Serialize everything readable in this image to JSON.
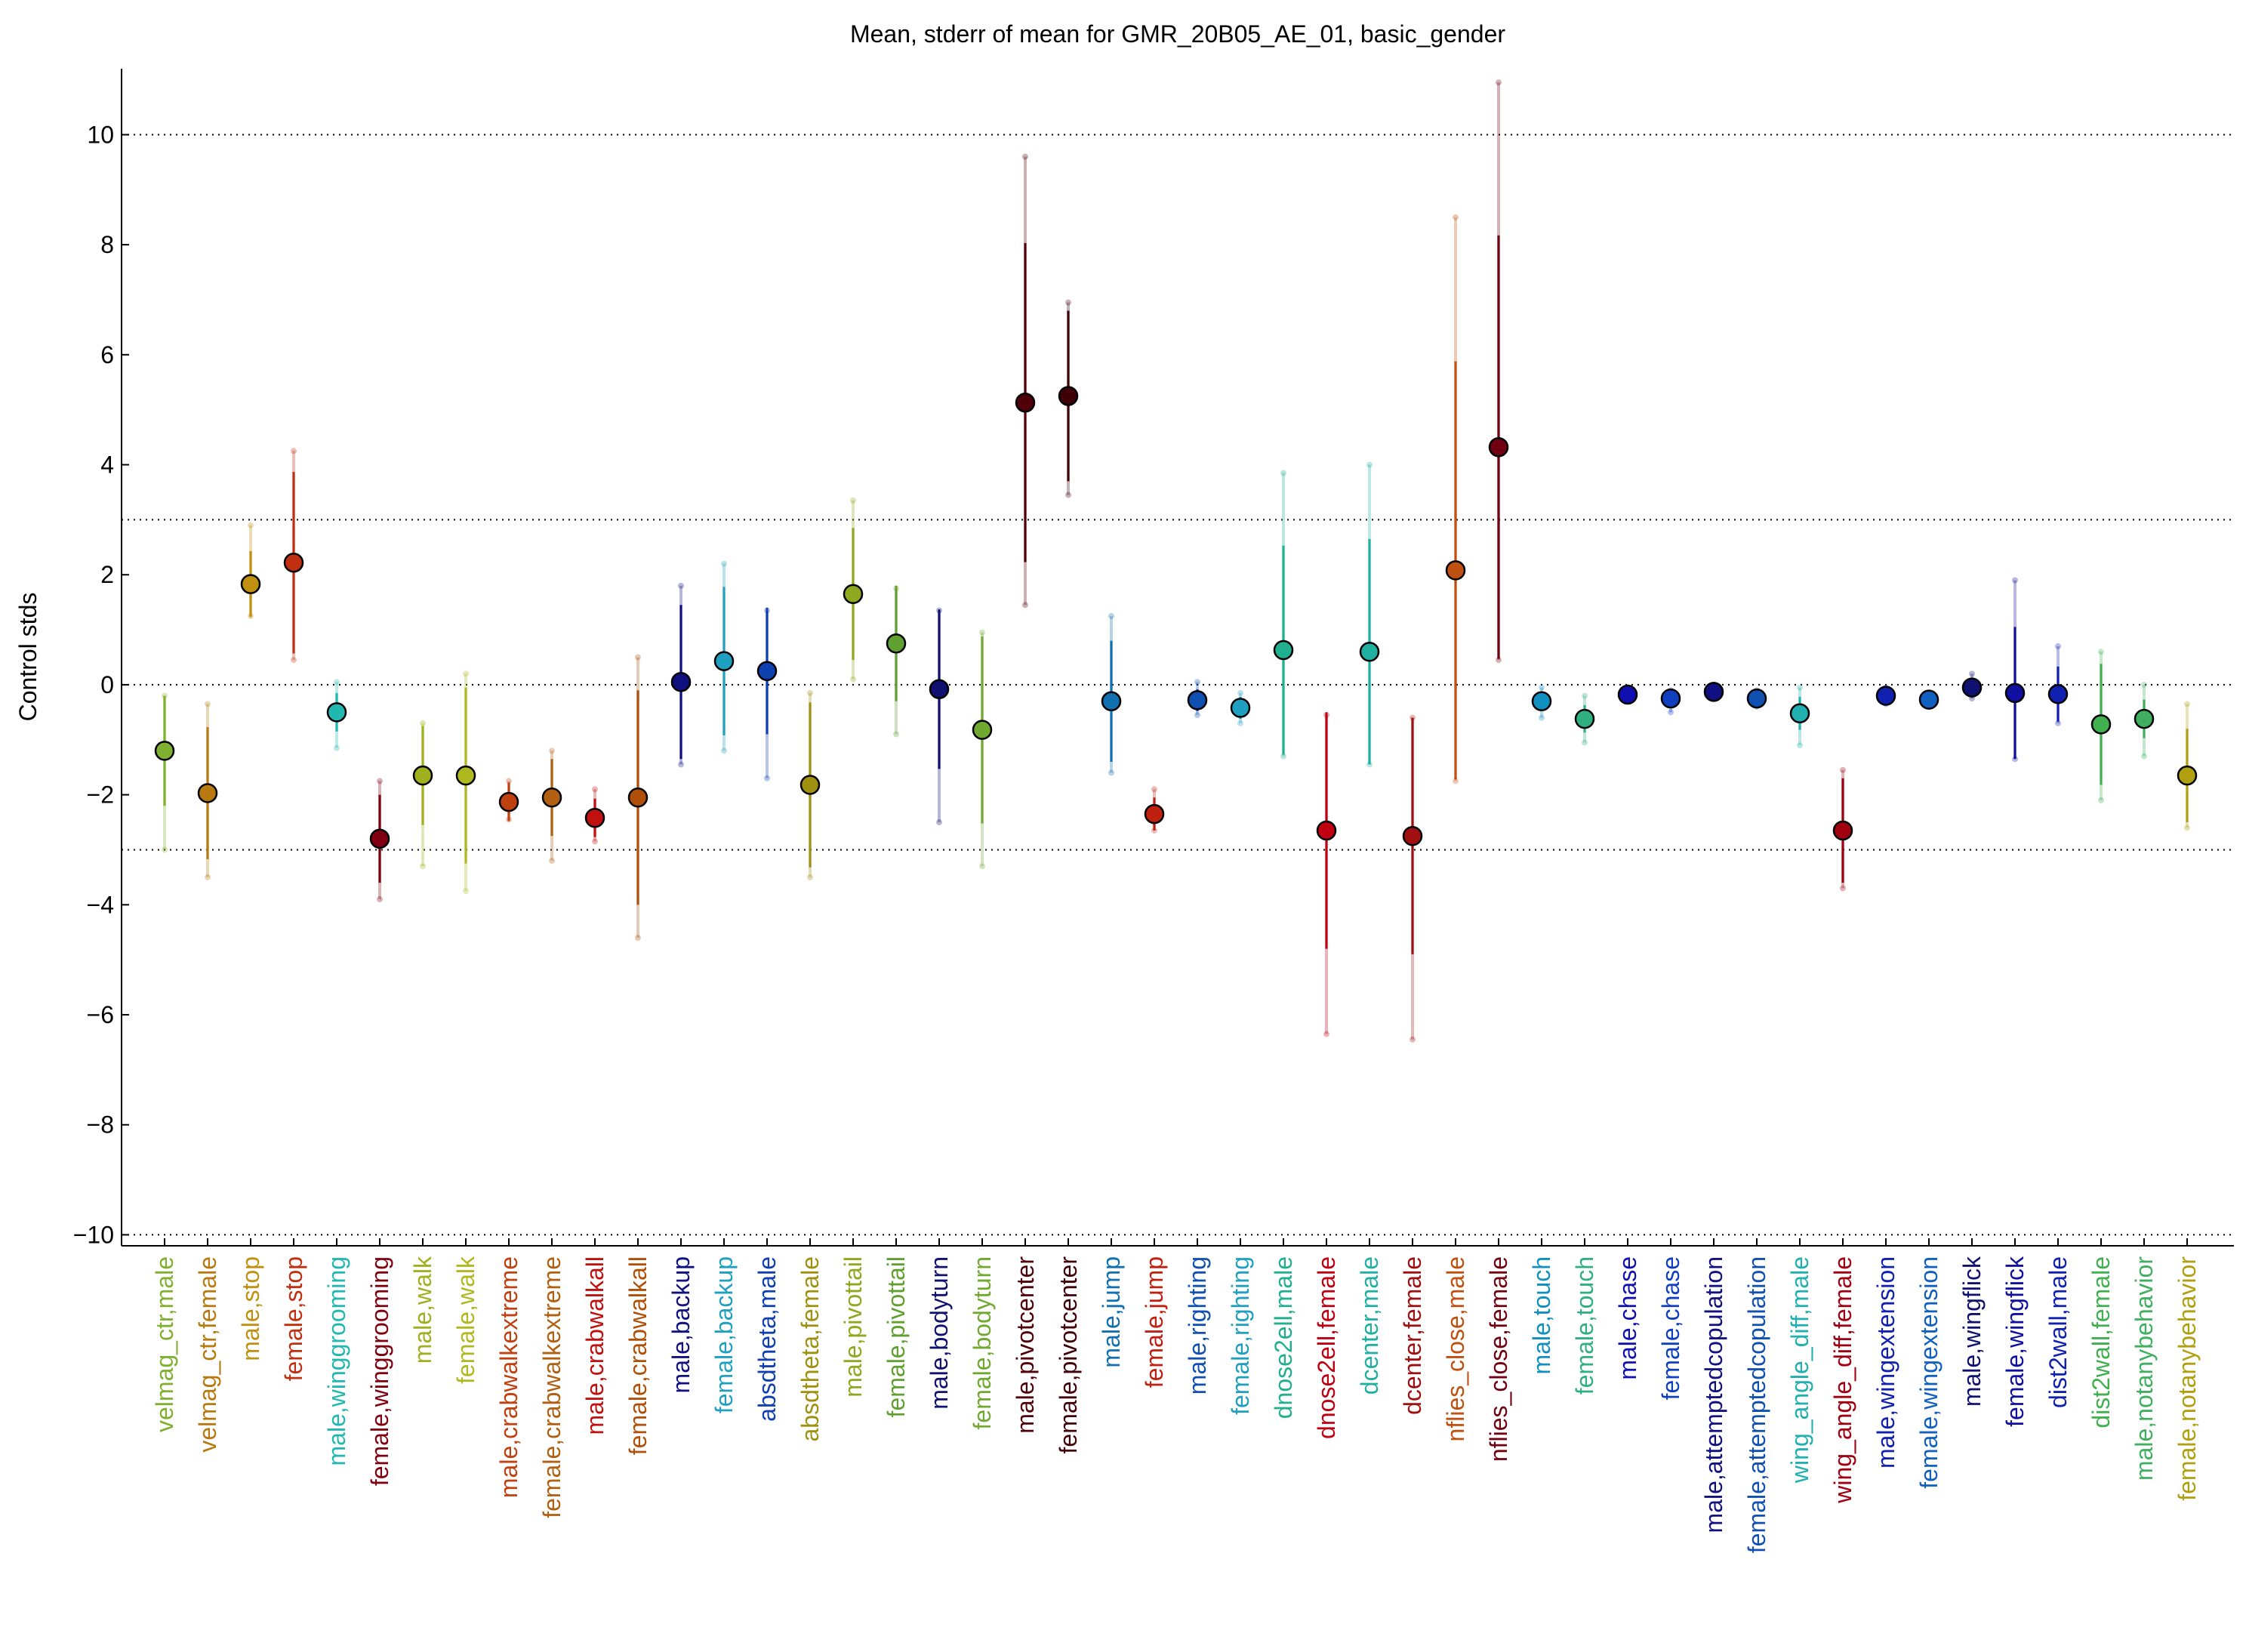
{
  "chart_data": {
    "type": "errorbar",
    "title": "Mean, stderr of mean for GMR_20B05_AE_01, basic_gender",
    "y_label": "Control stds",
    "ylim": [
      -10.2,
      11.2
    ],
    "yticks": [
      {
        "value": -10,
        "label": "−10"
      },
      {
        "value": -8,
        "label": "−8"
      },
      {
        "value": -6,
        "label": "−6"
      },
      {
        "value": -4,
        "label": "−4"
      },
      {
        "value": -2,
        "label": "−2"
      },
      0,
      2,
      4,
      6,
      8,
      10
    ],
    "hlines": [
      -10,
      -3,
      0,
      3,
      10
    ],
    "categories": [
      "velmag_ctr,male",
      "velmag_ctr,female",
      "male,stop",
      "female,stop",
      "male,winggrooming",
      "female,winggrooming",
      "male,walk",
      "female,walk",
      "male,crabwalkextreme",
      "female,crabwalkextreme",
      "male,crabwalkall",
      "female,crabwalkall",
      "male,backup",
      "female,backup",
      "absdtheta,male",
      "absdtheta,female",
      "male,pivottail",
      "female,pivottail",
      "male,bodyturn",
      "female,bodyturn",
      "male,pivotcenter",
      "female,pivotcenter",
      "male,jump",
      "female,jump",
      "male,righting",
      "female,righting",
      "dnose2ell,male",
      "dnose2ell,female",
      "dcenter,male",
      "dcenter,female",
      "nflies_close,male",
      "nflies_close,female",
      "male,touch",
      "female,touch",
      "male,chase",
      "female,chase",
      "male,attemptedcopulation",
      "female,attemptedcopulation",
      "wing_angle_diff,male",
      "wing_angle_diff,female",
      "male,wingextension",
      "female,wingextension",
      "male,wingflick",
      "female,wingflick",
      "dist2wall,male",
      "dist2wall,female",
      "male,notanybehavior",
      "female,notanybehavior"
    ],
    "values": [
      -1.2,
      -1.97,
      1.83,
      2.22,
      -0.5,
      -2.8,
      -1.65,
      -1.65,
      -2.13,
      -2.05,
      -2.42,
      -2.05,
      0.05,
      0.43,
      0.25,
      -1.82,
      1.65,
      0.75,
      -0.08,
      -0.82,
      5.13,
      5.25,
      -0.3,
      -2.35,
      -0.28,
      -0.42,
      0.63,
      -2.65,
      0.6,
      -2.75,
      2.08,
      4.32,
      -0.3,
      -0.62,
      -0.18,
      -0.25,
      -0.13,
      -0.25,
      -0.52,
      -2.65,
      -0.2,
      -0.27,
      -0.05,
      -0.15,
      -0.17,
      -0.72,
      -0.62,
      -1.65
    ],
    "errors": [
      1.0,
      1.2,
      0.6,
      1.65,
      0.35,
      0.8,
      0.9,
      1.6,
      0.35,
      0.7,
      0.35,
      1.95,
      1.4,
      1.35,
      1.15,
      1.5,
      1.2,
      1.05,
      1.45,
      1.7,
      2.9,
      1.55,
      1.1,
      0.3,
      0.2,
      0.2,
      1.9,
      2.15,
      2.05,
      2.15,
      3.8,
      3.85,
      0.15,
      0.25,
      0.1,
      0.12,
      0.08,
      0.1,
      0.3,
      0.95,
      0.08,
      0.1,
      0.15,
      1.2,
      0.5,
      1.1,
      0.35,
      0.85
    ],
    "low": [
      -3.0,
      -3.5,
      1.25,
      0.45,
      -1.15,
      -3.9,
      -3.3,
      -3.75,
      -2.45,
      -3.2,
      -2.85,
      -4.6,
      -1.45,
      -1.2,
      -1.7,
      -3.5,
      0.1,
      -0.9,
      -2.5,
      -3.3,
      1.45,
      3.45,
      -1.6,
      -2.65,
      -0.55,
      -0.7,
      -1.3,
      -6.35,
      -1.45,
      -6.45,
      -1.75,
      0.45,
      -0.6,
      -1.05,
      -0.3,
      -0.5,
      -0.25,
      -0.4,
      -1.1,
      -3.7,
      -0.35,
      -0.4,
      -0.25,
      -1.35,
      -0.7,
      -2.1,
      -1.3,
      -2.6
    ],
    "high": [
      -0.2,
      -0.35,
      2.9,
      4.25,
      0.05,
      -1.75,
      -0.7,
      0.2,
      -1.75,
      -1.2,
      -1.9,
      0.5,
      1.8,
      2.2,
      1.35,
      -0.15,
      3.35,
      1.75,
      1.35,
      0.95,
      9.6,
      6.95,
      1.25,
      -1.9,
      0.05,
      -0.15,
      3.85,
      -0.55,
      4.0,
      -0.6,
      8.5,
      10.95,
      -0.05,
      -0.2,
      -0.05,
      -0.1,
      0,
      -0.1,
      -0.05,
      -1.55,
      -0.05,
      -0.15,
      0.2,
      1.9,
      0.7,
      0.6,
      0,
      -0.35
    ],
    "colors": [
      "#80b030",
      "#b87a10",
      "#c09010",
      "#c03010",
      "#20b8b0",
      "#800010",
      "#a0b020",
      "#b0b820",
      "#c04010",
      "#b06010",
      "#c01010",
      "#b05008",
      "#101080",
      "#20a0c0",
      "#1040b0",
      "#a09010",
      "#90a820",
      "#60a030",
      "#101070",
      "#70a830",
      "#500008",
      "#400008",
      "#1070b0",
      "#c02010",
      "#1050b0",
      "#20a0c0",
      "#20b090",
      "#c00010",
      "#20b0a0",
      "#a01010",
      "#c05010",
      "#700010",
      "#1090c0",
      "#30b080",
      "#1010b0",
      "#1040c0",
      "#101080",
      "#1050b0",
      "#20b0b0",
      "#a00010",
      "#1020b0",
      "#1060c0",
      "#101070",
      "#1010a0",
      "#1020b0",
      "#40b050",
      "#40b060",
      "#b0a010"
    ]
  }
}
